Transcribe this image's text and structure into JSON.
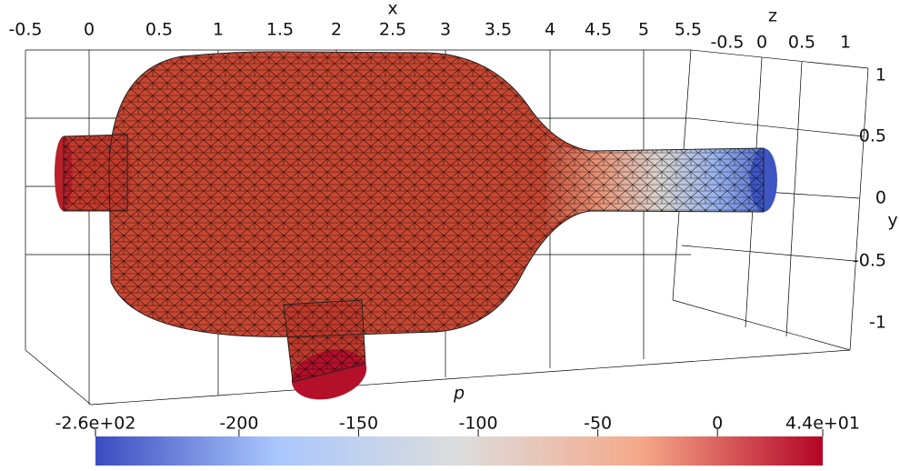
{
  "axes": {
    "x": {
      "label": "x",
      "ticks": [
        "-0.5",
        "0",
        "0.5",
        "1",
        "1.5",
        "2",
        "2.5",
        "3",
        "3.5",
        "4",
        "4.5",
        "5",
        "5.5"
      ]
    },
    "z": {
      "label": "z",
      "ticks": [
        "-0.5",
        "0",
        "0.5",
        "1"
      ]
    },
    "y": {
      "label": "y",
      "ticks": [
        "1",
        "0.5",
        "0",
        "-0.5",
        "-1"
      ]
    }
  },
  "colorbar": {
    "title": "p",
    "range": [
      -260,
      44
    ],
    "ticks": [
      {
        "value": -260,
        "label": "-2.6e+02"
      },
      -200,
      -150,
      -100,
      -50,
      0,
      {
        "value": 44,
        "label": "4.4e+01"
      }
    ],
    "colors": [
      "#3b4cc0",
      "#aac7fd",
      "#dddddd",
      "#f5a889",
      "#b40426"
    ]
  }
}
